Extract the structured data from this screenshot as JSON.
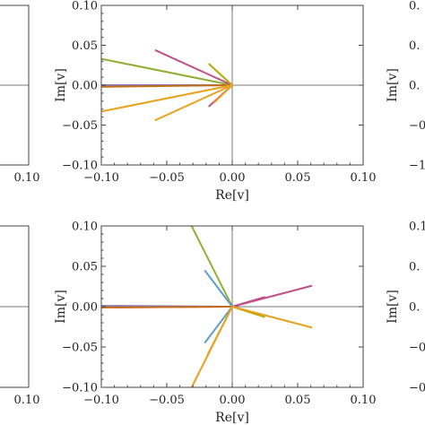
{
  "chart_data": [
    {
      "type": "line",
      "panel": "top-center",
      "xlabel": "Re[v]",
      "ylabel": "Im[v]",
      "xlim": [
        -0.1,
        0.1
      ],
      "ylim": [
        -0.1,
        0.1
      ],
      "x_ticks": [
        "−0.10",
        "−0.05",
        "0.00",
        "0.05",
        "0.10"
      ],
      "y_ticks": [
        "0.10",
        "0.05",
        "0.00",
        "−0.05",
        "−0.10"
      ],
      "grid": false,
      "series": [
        {
          "color": "#5e81b5",
          "values": [
            [
              0,
              0
            ],
            [
              -0.1,
              0.0
            ]
          ]
        },
        {
          "color": "#8fb032",
          "values": [
            [
              0,
              0
            ],
            [
              -0.1,
              0.033
            ]
          ]
        },
        {
          "color": "#eb6235",
          "values": [
            [
              0,
              0
            ],
            [
              -0.1,
              -0.001
            ]
          ]
        },
        {
          "color": "#8778b3",
          "values": [
            [
              0,
              0
            ],
            [
              -0.1,
              0.0
            ]
          ]
        },
        {
          "color": "#c56e1a",
          "values": [
            [
              0,
              0
            ],
            [
              -0.1,
              -0.002
            ]
          ]
        },
        {
          "color": "#5d9ec7",
          "values": [
            [
              0,
              0
            ],
            [
              -0.003,
              0.003
            ]
          ]
        },
        {
          "color": "#c0508a",
          "values": [
            [
              0,
              0
            ],
            [
              -0.059,
              0.044
            ]
          ]
        },
        {
          "color": "#c0508a",
          "values": [
            [
              0,
              0
            ],
            [
              -0.018,
              -0.027
            ]
          ]
        },
        {
          "color": "#b8a900",
          "values": [
            [
              0,
              0
            ],
            [
              -0.018,
              0.027
            ]
          ]
        },
        {
          "color": "#e9a21f",
          "values": [
            [
              0,
              0
            ],
            [
              -0.1,
              -0.033
            ]
          ]
        },
        {
          "color": "#e9a21f",
          "values": [
            [
              0,
              0
            ],
            [
              -0.059,
              -0.044
            ]
          ]
        },
        {
          "color": "#e9a21f",
          "values": [
            [
              0,
              0
            ],
            [
              -0.014,
              -0.022
            ]
          ]
        }
      ]
    },
    {
      "type": "line",
      "panel": "bottom-center",
      "xlabel": "Re[v]",
      "ylabel": "Im[v]",
      "xlim": [
        -0.1,
        0.1
      ],
      "ylim": [
        -0.1,
        0.1
      ],
      "x_ticks": [
        "−0.10",
        "−0.05",
        "0.00",
        "0.05",
        "0.10"
      ],
      "y_ticks": [
        "0.10",
        "0.05",
        "0.00",
        "−0.05",
        "−0.10"
      ],
      "grid": false,
      "series": [
        {
          "color": "#5e81b5",
          "values": [
            [
              0,
              0
            ],
            [
              -0.1,
              0.0
            ]
          ]
        },
        {
          "color": "#eb6235",
          "values": [
            [
              0,
              0
            ],
            [
              -0.1,
              -0.001
            ]
          ]
        },
        {
          "color": "#8778b3",
          "values": [
            [
              0,
              0
            ],
            [
              -0.1,
              0.001
            ]
          ]
        },
        {
          "color": "#c56e1a",
          "values": [
            [
              0,
              0
            ],
            [
              -0.1,
              -0.001
            ]
          ]
        },
        {
          "color": "#8fb032",
          "values": [
            [
              0,
              0
            ],
            [
              -0.031,
              0.1
            ]
          ]
        },
        {
          "color": "#5d9ec7",
          "values": [
            [
              0,
              0
            ],
            [
              -0.021,
              0.045
            ]
          ]
        },
        {
          "color": "#5d9ec7",
          "values": [
            [
              0,
              0
            ],
            [
              -0.021,
              -0.045
            ]
          ]
        },
        {
          "color": "#c0508a",
          "values": [
            [
              0,
              0
            ],
            [
              0.061,
              0.026
            ]
          ]
        },
        {
          "color": "#c0508a",
          "values": [
            [
              0,
              0
            ],
            [
              0.025,
              0.012
            ]
          ]
        },
        {
          "color": "#b8a900",
          "values": [
            [
              0,
              0
            ],
            [
              0.025,
              -0.013
            ]
          ]
        },
        {
          "color": "#e9a21f",
          "values": [
            [
              0,
              0
            ],
            [
              0.061,
              -0.026
            ]
          ]
        },
        {
          "color": "#e9a21f",
          "values": [
            [
              0,
              0
            ],
            [
              -0.031,
              -0.1
            ]
          ]
        },
        {
          "color": "#e9a21f",
          "values": [
            [
              0,
              0
            ],
            [
              -0.019,
              -0.06
            ]
          ]
        }
      ]
    },
    {
      "type": "line",
      "panel": "top-left-partial",
      "x_ticks": [
        "0.10"
      ],
      "grid": false
    },
    {
      "type": "line",
      "panel": "bottom-left-partial",
      "x_ticks": [
        "0.10"
      ],
      "grid": false
    },
    {
      "type": "line",
      "panel": "top-right-partial",
      "ylabel": "Im[v]",
      "y_ticks": [
        "0.",
        "0.",
        "0.",
        "−0.",
        "−1"
      ],
      "grid": false
    },
    {
      "type": "line",
      "panel": "bottom-right-partial",
      "ylabel": "Im[v]",
      "y_ticks": [
        "0.1",
        "0.",
        "0.",
        "−0.",
        "−0.1"
      ],
      "grid": false
    }
  ]
}
